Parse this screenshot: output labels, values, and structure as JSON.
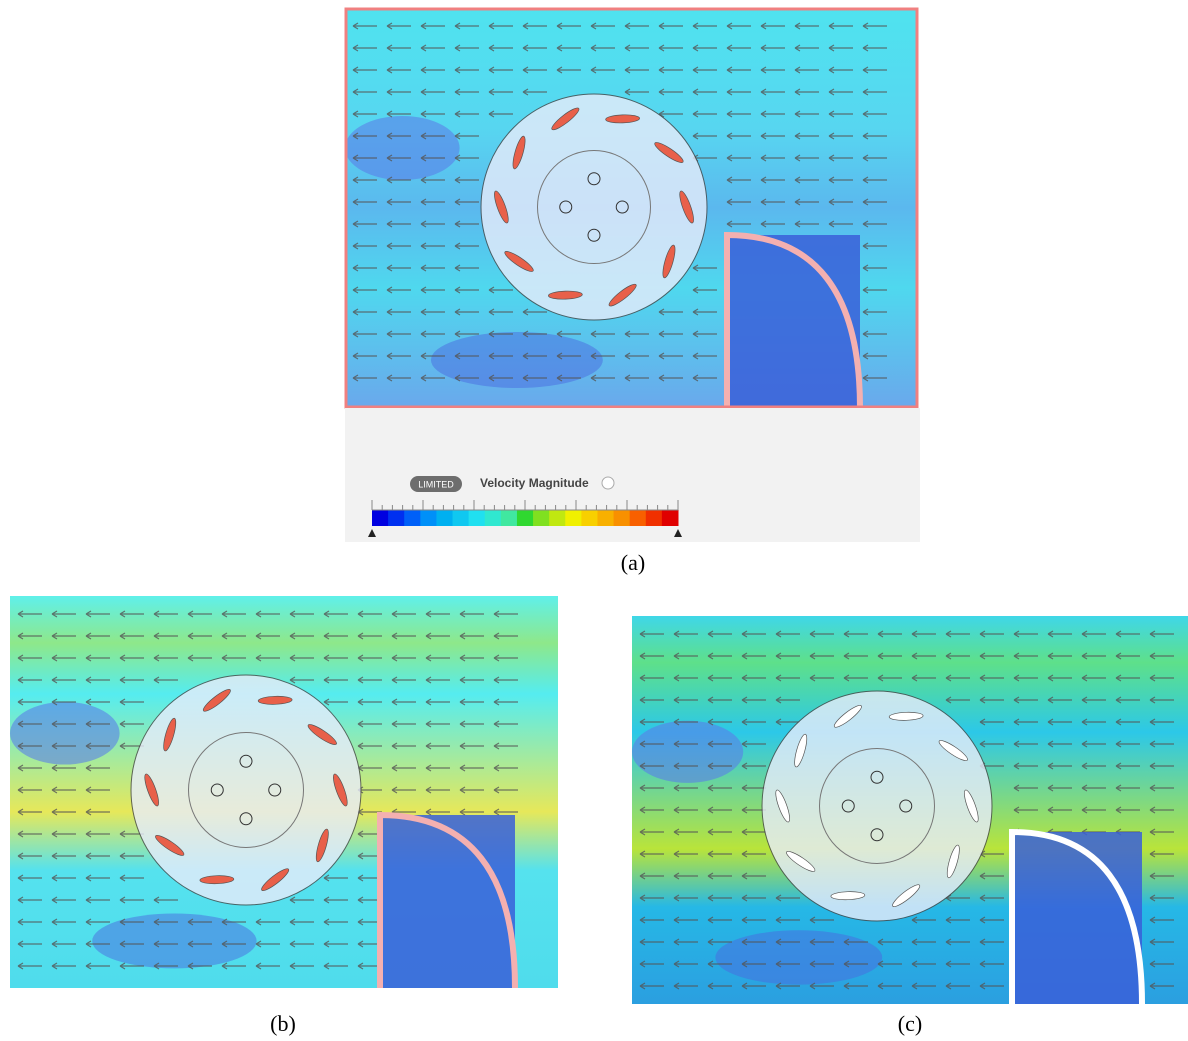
{
  "legend": {
    "badge": "LIMITED",
    "title": "Velocity Magnitude"
  },
  "panels": [
    {
      "label": "(a)"
    },
    {
      "label": "(b)"
    },
    {
      "label": "(c)"
    }
  ]
}
